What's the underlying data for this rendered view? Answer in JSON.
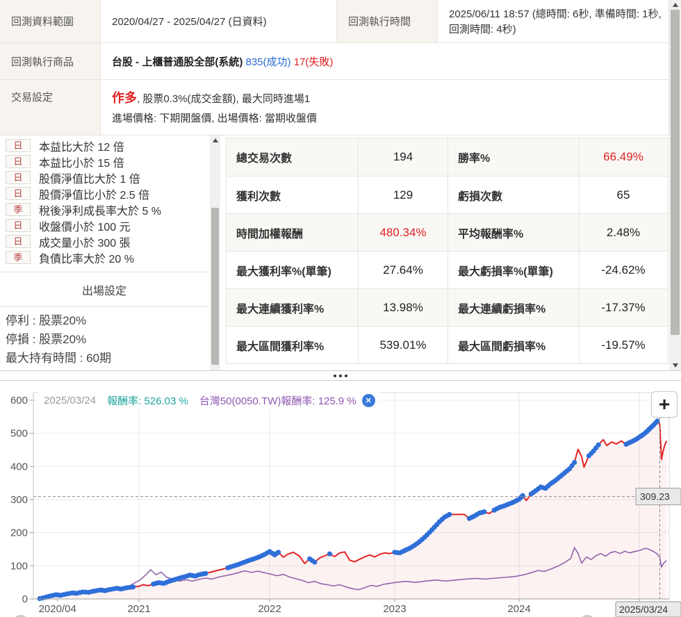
{
  "info_table": {
    "range_label": "回測資料範圍",
    "range_value": "2020/04/27 - 2025/04/27 (日資料)",
    "time_label": "回測執行時間",
    "time_value": "2025/06/11 18:57 (總時間: 6秒, 準備時間: 1秒, 回測時間: 4秒)",
    "product_label": "回測執行商品",
    "product_name": "台股 - 上櫃普通股全部(系統)",
    "product_success": "835(成功)",
    "product_fail": "17(失敗)",
    "trade_label": "交易設定",
    "trade_direction": "作多",
    "trade_rest": ", 股票0.3%(成交金額), 最大同時進場1",
    "trade_line2": "進場價格: 下期開盤價, 出場價格: 當期收盤價"
  },
  "conditions": {
    "items": [
      {
        "badge": "日",
        "text": "本益比大於 12 倍"
      },
      {
        "badge": "日",
        "text": "本益比小於 15 倍"
      },
      {
        "badge": "日",
        "text": "股價淨值比大於 1 倍"
      },
      {
        "badge": "日",
        "text": "股價淨值比小於 2.5 倍"
      },
      {
        "badge": "季",
        "text": "稅後淨利成長率大於 5 %"
      },
      {
        "badge": "日",
        "text": "收盤價小於 100 元"
      },
      {
        "badge": "日",
        "text": "成交量小於 300 張"
      },
      {
        "badge": "季",
        "text": "負債比率大於 20 %"
      }
    ],
    "exit_header": "出場設定",
    "exit_lines": [
      "停利 : 股票20%",
      "停損 : 股票20%",
      "最大持有時間 : 60期"
    ]
  },
  "stats_table": {
    "rows": [
      [
        {
          "t": "總交易次數"
        },
        {
          "t": "194"
        },
        {
          "t": "勝率%"
        },
        {
          "t": "66.49%",
          "red": true
        }
      ],
      [
        {
          "t": "獲利次數"
        },
        {
          "t": "129"
        },
        {
          "t": "虧損次數"
        },
        {
          "t": "65"
        }
      ],
      [
        {
          "t": "時間加權報酬"
        },
        {
          "t": "480.34%",
          "red": true
        },
        {
          "t": "平均報酬率%"
        },
        {
          "t": "2.48%"
        }
      ],
      [
        {
          "t": "最大獲利率%(單筆)"
        },
        {
          "t": "27.64%"
        },
        {
          "t": "最大虧損率%(單筆)"
        },
        {
          "t": "-24.62%"
        }
      ],
      [
        {
          "t": "最大連續獲利率%"
        },
        {
          "t": "13.98%"
        },
        {
          "t": "最大連續虧損率%"
        },
        {
          "t": "-17.37%"
        }
      ],
      [
        {
          "t": "最大區間獲利率%"
        },
        {
          "t": "539.01%"
        },
        {
          "t": "最大區間虧損率%"
        },
        {
          "t": "-19.57%"
        }
      ]
    ]
  },
  "chart": {
    "legend": {
      "date": "2025/03/24",
      "s1_label": "報酬率:",
      "s1_value": "526.03 %",
      "s2_label": "台灣50(0050.TW)報酬率:",
      "s2_value": "125.9 %",
      "close_icon": "✕"
    },
    "zoom_button": "+"
  },
  "chart_data": {
    "type": "line",
    "title": "",
    "grid": true,
    "legend_position": "top-left",
    "y_axis": {
      "range": [
        0,
        600
      ],
      "ticks": [
        0,
        100,
        200,
        300,
        400,
        500,
        600
      ]
    },
    "x_axis": {
      "ticks": [
        {
          "label": "2020/04",
          "year": 2020.45
        },
        {
          "label": "2021",
          "year": 2021
        },
        {
          "label": "2022",
          "year": 2022
        },
        {
          "label": "2023",
          "year": 2023
        },
        {
          "label": "2024",
          "year": 2024
        },
        {
          "label": "2025",
          "year": 2025
        }
      ]
    },
    "crosshair": {
      "x_label": "2025/03/24",
      "y_label": "309.23",
      "x_year": 2025.24,
      "y_value": 309.23
    },
    "series": [
      {
        "name": "報酬率",
        "color": "#e12424",
        "fill": "rgba(225,36,36,0.06)",
        "marker_color": "#2e6fd8",
        "marker_segments": [
          [
            2020.33,
            2020.97
          ],
          [
            2021.1,
            2021.52
          ],
          [
            2021.68,
            2021.97
          ],
          [
            2022.0,
            2022.08
          ],
          [
            2022.32,
            2022.37
          ],
          [
            2022.46,
            2022.5
          ],
          [
            2023.0,
            2023.45
          ],
          [
            2023.58,
            2023.73
          ],
          [
            2023.79,
            2024.04
          ],
          [
            2024.09,
            2024.47
          ],
          [
            2024.58,
            2024.68
          ],
          [
            2024.88,
            2025.22
          ]
        ],
        "points": [
          [
            2020.33,
            1
          ],
          [
            2020.37,
            5
          ],
          [
            2020.4,
            9
          ],
          [
            2020.44,
            13
          ],
          [
            2020.47,
            11
          ],
          [
            2020.51,
            15
          ],
          [
            2020.55,
            18
          ],
          [
            2020.58,
            17
          ],
          [
            2020.62,
            21
          ],
          [
            2020.66,
            20
          ],
          [
            2020.7,
            24
          ],
          [
            2020.74,
            27
          ],
          [
            2020.77,
            25
          ],
          [
            2020.81,
            29
          ],
          [
            2020.85,
            32
          ],
          [
            2020.88,
            30
          ],
          [
            2020.92,
            34
          ],
          [
            2020.96,
            36
          ],
          [
            2021.0,
            38
          ],
          [
            2021.03,
            43
          ],
          [
            2021.07,
            40
          ],
          [
            2021.11,
            45
          ],
          [
            2021.15,
            49
          ],
          [
            2021.19,
            47
          ],
          [
            2021.23,
            53
          ],
          [
            2021.27,
            58
          ],
          [
            2021.31,
            63
          ],
          [
            2021.35,
            67
          ],
          [
            2021.39,
            72
          ],
          [
            2021.43,
            69
          ],
          [
            2021.47,
            74
          ],
          [
            2021.51,
            77
          ],
          [
            2021.55,
            81
          ],
          [
            2021.6,
            86
          ],
          [
            2021.64,
            90
          ],
          [
            2021.68,
            94
          ],
          [
            2021.72,
            99
          ],
          [
            2021.76,
            104
          ],
          [
            2021.8,
            110
          ],
          [
            2021.84,
            116
          ],
          [
            2021.88,
            121
          ],
          [
            2021.92,
            127
          ],
          [
            2021.96,
            134
          ],
          [
            2022.0,
            143
          ],
          [
            2022.04,
            133
          ],
          [
            2022.07,
            141
          ],
          [
            2022.11,
            126
          ],
          [
            2022.15,
            136
          ],
          [
            2022.19,
            141
          ],
          [
            2022.24,
            129
          ],
          [
            2022.28,
            107
          ],
          [
            2022.32,
            121
          ],
          [
            2022.36,
            111
          ],
          [
            2022.4,
            124
          ],
          [
            2022.44,
            130
          ],
          [
            2022.48,
            136
          ],
          [
            2022.52,
            128
          ],
          [
            2022.56,
            139
          ],
          [
            2022.6,
            142
          ],
          [
            2022.64,
            117
          ],
          [
            2022.68,
            112
          ],
          [
            2022.72,
            120
          ],
          [
            2022.76,
            127
          ],
          [
            2022.8,
            133
          ],
          [
            2022.84,
            127
          ],
          [
            2022.88,
            135
          ],
          [
            2022.92,
            139
          ],
          [
            2022.96,
            137
          ],
          [
            2023.0,
            141
          ],
          [
            2023.04,
            139
          ],
          [
            2023.08,
            146
          ],
          [
            2023.12,
            153
          ],
          [
            2023.16,
            162
          ],
          [
            2023.2,
            173
          ],
          [
            2023.24,
            186
          ],
          [
            2023.28,
            201
          ],
          [
            2023.32,
            217
          ],
          [
            2023.36,
            233
          ],
          [
            2023.4,
            247
          ],
          [
            2023.44,
            255
          ],
          [
            2023.56,
            255
          ],
          [
            2023.6,
            243
          ],
          [
            2023.64,
            250
          ],
          [
            2023.68,
            259
          ],
          [
            2023.72,
            263
          ],
          [
            2023.76,
            258
          ],
          [
            2023.8,
            268
          ],
          [
            2023.84,
            276
          ],
          [
            2023.88,
            281
          ],
          [
            2023.92,
            287
          ],
          [
            2023.96,
            293
          ],
          [
            2024.0,
            301
          ],
          [
            2024.03,
            312
          ],
          [
            2024.06,
            297
          ],
          [
            2024.1,
            317
          ],
          [
            2024.14,
            327
          ],
          [
            2024.18,
            338
          ],
          [
            2024.22,
            334
          ],
          [
            2024.26,
            347
          ],
          [
            2024.3,
            357
          ],
          [
            2024.34,
            369
          ],
          [
            2024.38,
            381
          ],
          [
            2024.42,
            393
          ],
          [
            2024.46,
            412
          ],
          [
            2024.49,
            452
          ],
          [
            2024.52,
            430
          ],
          [
            2024.54,
            398
          ],
          [
            2024.58,
            432
          ],
          [
            2024.62,
            447
          ],
          [
            2024.66,
            465
          ],
          [
            2024.7,
            481
          ],
          [
            2024.73,
            463
          ],
          [
            2024.77,
            474
          ],
          [
            2024.81,
            468
          ],
          [
            2024.85,
            477
          ],
          [
            2024.89,
            467
          ],
          [
            2024.93,
            474
          ],
          [
            2024.97,
            481
          ],
          [
            2025.01,
            490
          ],
          [
            2025.05,
            497
          ],
          [
            2025.09,
            506
          ],
          [
            2025.13,
            516
          ],
          [
            2025.17,
            526
          ],
          [
            2025.21,
            537
          ],
          [
            2025.24,
            526
          ],
          [
            2025.26,
            421
          ],
          [
            2025.28,
            448
          ],
          [
            2025.3,
            466
          ],
          [
            2025.32,
            477
          ]
        ]
      },
      {
        "name": "台灣50(0050.TW)報酬率",
        "color": "#9263ad",
        "points": [
          [
            2020.33,
            0
          ],
          [
            2020.4,
            5
          ],
          [
            2020.47,
            9
          ],
          [
            2020.54,
            13
          ],
          [
            2020.61,
            16
          ],
          [
            2020.68,
            19
          ],
          [
            2020.75,
            23
          ],
          [
            2020.82,
            26
          ],
          [
            2020.88,
            30
          ],
          [
            2020.93,
            38
          ],
          [
            2020.97,
            48
          ],
          [
            2021.01,
            58
          ],
          [
            2021.05,
            72
          ],
          [
            2021.09,
            88
          ],
          [
            2021.13,
            73
          ],
          [
            2021.17,
            81
          ],
          [
            2021.21,
            66
          ],
          [
            2021.26,
            59
          ],
          [
            2021.31,
            54
          ],
          [
            2021.36,
            58
          ],
          [
            2021.41,
            54
          ],
          [
            2021.46,
            59
          ],
          [
            2021.51,
            63
          ],
          [
            2021.56,
            60
          ],
          [
            2021.61,
            66
          ],
          [
            2021.66,
            70
          ],
          [
            2021.71,
            74
          ],
          [
            2021.76,
            79
          ],
          [
            2021.81,
            85
          ],
          [
            2021.86,
            80
          ],
          [
            2021.91,
            84
          ],
          [
            2021.96,
            79
          ],
          [
            2022.01,
            75
          ],
          [
            2022.06,
            70
          ],
          [
            2022.11,
            74
          ],
          [
            2022.16,
            66
          ],
          [
            2022.21,
            61
          ],
          [
            2022.26,
            56
          ],
          [
            2022.31,
            49
          ],
          [
            2022.36,
            53
          ],
          [
            2022.41,
            46
          ],
          [
            2022.46,
            43
          ],
          [
            2022.51,
            39
          ],
          [
            2022.56,
            43
          ],
          [
            2022.61,
            36
          ],
          [
            2022.66,
            31
          ],
          [
            2022.71,
            28
          ],
          [
            2022.76,
            34
          ],
          [
            2022.81,
            41
          ],
          [
            2022.86,
            38
          ],
          [
            2022.91,
            44
          ],
          [
            2022.96,
            47
          ],
          [
            2023.01,
            50
          ],
          [
            2023.09,
            53
          ],
          [
            2023.17,
            50
          ],
          [
            2023.25,
            54
          ],
          [
            2023.33,
            57
          ],
          [
            2023.41,
            54
          ],
          [
            2023.49,
            57
          ],
          [
            2023.57,
            60
          ],
          [
            2023.65,
            62
          ],
          [
            2023.73,
            60
          ],
          [
            2023.81,
            63
          ],
          [
            2023.89,
            65
          ],
          [
            2023.97,
            68
          ],
          [
            2024.04,
            73
          ],
          [
            2024.1,
            79
          ],
          [
            2024.16,
            86
          ],
          [
            2024.21,
            83
          ],
          [
            2024.27,
            91
          ],
          [
            2024.33,
            100
          ],
          [
            2024.38,
            110
          ],
          [
            2024.43,
            122
          ],
          [
            2024.46,
            155
          ],
          [
            2024.49,
            138
          ],
          [
            2024.52,
            108
          ],
          [
            2024.56,
            127
          ],
          [
            2024.6,
            119
          ],
          [
            2024.64,
            131
          ],
          [
            2024.68,
            137
          ],
          [
            2024.72,
            129
          ],
          [
            2024.76,
            140
          ],
          [
            2024.8,
            143
          ],
          [
            2024.84,
            137
          ],
          [
            2024.88,
            144
          ],
          [
            2024.92,
            139
          ],
          [
            2024.96,
            143
          ],
          [
            2025.0,
            146
          ],
          [
            2025.04,
            150
          ],
          [
            2025.08,
            153
          ],
          [
            2025.12,
            149
          ],
          [
            2025.16,
            144
          ],
          [
            2025.2,
            138
          ],
          [
            2025.24,
            126
          ],
          [
            2025.26,
            96
          ],
          [
            2025.28,
            106
          ],
          [
            2025.3,
            112
          ],
          [
            2025.32,
            116
          ]
        ]
      }
    ]
  }
}
